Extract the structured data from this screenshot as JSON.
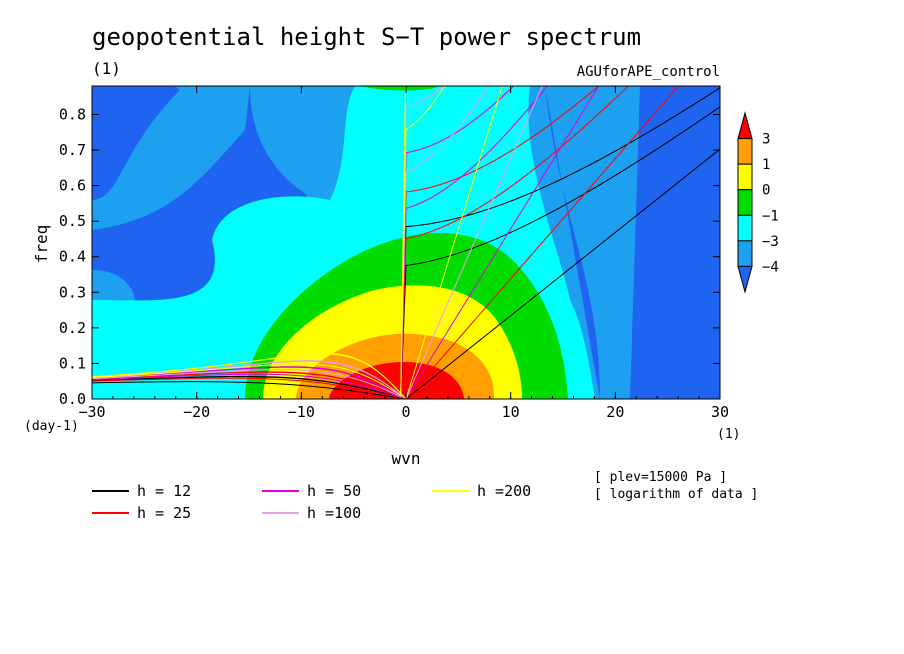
{
  "chart_data": {
    "type": "heatmap",
    "title": "geopotential height S−T power spectrum",
    "subtitle": "(1)",
    "dataset_label": "AGUforAPE_control",
    "xlabel": "wvn",
    "ylabel": "freq",
    "x_units": "(1)",
    "y_units": "(day-1)",
    "xlim": [
      -30,
      30
    ],
    "ylim": [
      0,
      0.88
    ],
    "x_ticks": [
      "−30",
      "−20",
      "−10",
      "0",
      "10",
      "20",
      "30"
    ],
    "x_tick_values": [
      -30,
      -20,
      -10,
      0,
      10,
      20,
      30
    ],
    "y_ticks": [
      "0.0",
      "0.1",
      "0.2",
      "0.3",
      "0.4",
      "0.5",
      "0.6",
      "0.7",
      "0.8"
    ],
    "y_tick_values": [
      0,
      0.1,
      0.2,
      0.3,
      0.4,
      0.5,
      0.6,
      0.7,
      0.8
    ],
    "colorbar": {
      "levels": [
        -4,
        -3,
        -1,
        0,
        1,
        3
      ],
      "labels": [
        "3",
        "1",
        "0",
        "−1",
        "−3",
        "−4"
      ],
      "colors": [
        "#1e64f0",
        "#1ea0f0",
        "#00ffff",
        "#00dc00",
        "#ffff00",
        "#ffa000",
        "#ff0000"
      ]
    },
    "annotations": [
      "[ plev=15000 Pa ]",
      "[ logarithm of data ]"
    ],
    "series": [
      {
        "name": "h = 12",
        "h": 12,
        "color": "#000000"
      },
      {
        "name": "h = 25",
        "h": 25,
        "color": "#ff0000"
      },
      {
        "name": "h = 50",
        "h": 50,
        "color": "#dc00dc"
      },
      {
        "name": "h =100",
        "h": 100,
        "color": "#e6a0e6"
      },
      {
        "name": "h =200",
        "h": 200,
        "color": "#ffff00"
      }
    ]
  }
}
